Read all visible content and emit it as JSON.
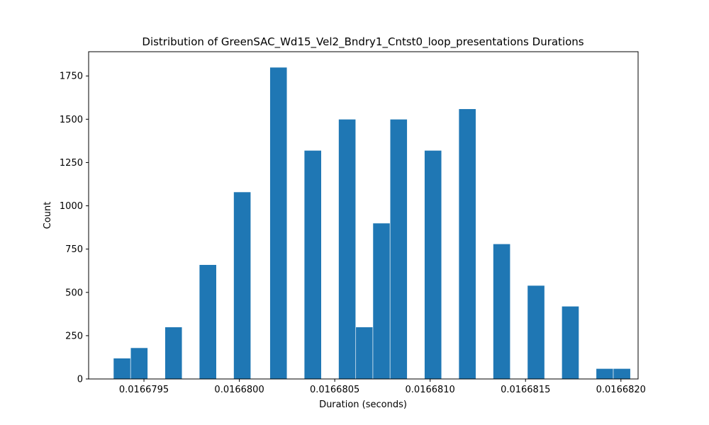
{
  "chart_data": {
    "type": "bar",
    "title": "Distribution of GreenSAC_Wd15_Vel2_Bndry1_Cntst0_loop_presentations Durations",
    "xlabel": "Duration (seconds)",
    "ylabel": "Count",
    "xlim": [
      0.01667921,
      0.01668209
    ],
    "ylim": [
      0,
      1890
    ],
    "bar_color": "#1f77b4",
    "x_ticks": [
      {
        "value": 0.0166795,
        "label": "0.0166795"
      },
      {
        "value": 0.01668,
        "label": "0.0166800"
      },
      {
        "value": 0.0166805,
        "label": "0.0166805"
      },
      {
        "value": 0.016681,
        "label": "0.0166810"
      },
      {
        "value": 0.0166815,
        "label": "0.0166815"
      },
      {
        "value": 0.016682,
        "label": "0.0166820"
      }
    ],
    "y_ticks": [
      {
        "value": 0,
        "label": "0"
      },
      {
        "value": 250,
        "label": "250"
      },
      {
        "value": 500,
        "label": "500"
      },
      {
        "value": 750,
        "label": "750"
      },
      {
        "value": 1000,
        "label": "1000"
      },
      {
        "value": 1250,
        "label": "1250"
      },
      {
        "value": 1500,
        "label": "1500"
      },
      {
        "value": 1750,
        "label": "1750"
      }
    ],
    "bins": [
      {
        "x0": 0.01667934,
        "x1": 0.01667943,
        "count": 120
      },
      {
        "x0": 0.01667943,
        "x1": 0.01667952,
        "count": 180
      },
      {
        "x0": 0.01667961,
        "x1": 0.0166797,
        "count": 300
      },
      {
        "x0": 0.01667979,
        "x1": 0.01667988,
        "count": 660
      },
      {
        "x0": 0.01667997,
        "x1": 0.01668006,
        "count": 1080
      },
      {
        "x0": 0.01668016,
        "x1": 0.01668025,
        "count": 1800
      },
      {
        "x0": 0.01668034,
        "x1": 0.01668043,
        "count": 1320
      },
      {
        "x0": 0.01668052,
        "x1": 0.01668061,
        "count": 1500
      },
      {
        "x0": 0.01668061,
        "x1": 0.0166807,
        "count": 300
      },
      {
        "x0": 0.0166807,
        "x1": 0.01668079,
        "count": 900
      },
      {
        "x0": 0.01668079,
        "x1": 0.01668088,
        "count": 1500
      },
      {
        "x0": 0.01668097,
        "x1": 0.01668106,
        "count": 1320
      },
      {
        "x0": 0.01668115,
        "x1": 0.01668124,
        "count": 1560
      },
      {
        "x0": 0.01668133,
        "x1": 0.01668142,
        "count": 780
      },
      {
        "x0": 0.01668151,
        "x1": 0.0166816,
        "count": 540
      },
      {
        "x0": 0.01668169,
        "x1": 0.01668178,
        "count": 420
      },
      {
        "x0": 0.01668187,
        "x1": 0.01668196,
        "count": 60
      },
      {
        "x0": 0.01668196,
        "x1": 0.01668205,
        "count": 60
      }
    ]
  }
}
